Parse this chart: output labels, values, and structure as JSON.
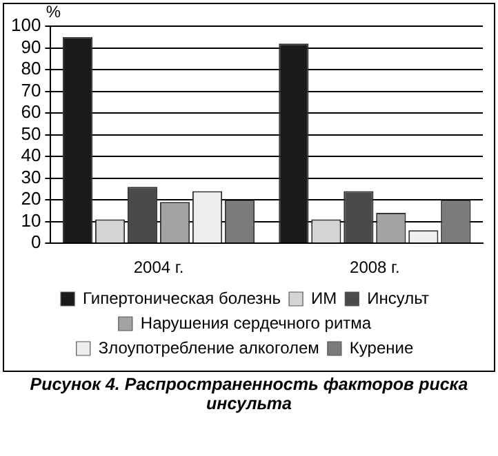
{
  "chart_data": {
    "type": "bar",
    "ylabel": "%",
    "categories": [
      "2004 г.",
      "2008 г."
    ],
    "series": [
      {
        "name": "Гипертоническая болезнь",
        "color": "#1a1a1a",
        "values": [
          95,
          92
        ]
      },
      {
        "name": "ИМ",
        "color": "#d4d4d4",
        "values": [
          11,
          11
        ]
      },
      {
        "name": "Инсульт",
        "color": "#4a4a4a",
        "values": [
          26,
          24
        ]
      },
      {
        "name": "Нарушения сердечного ритма",
        "color": "#a3a3a3",
        "values": [
          19,
          14
        ]
      },
      {
        "name": "Злоупотребление алкоголем",
        "color": "#eeeeee",
        "values": [
          24,
          6
        ]
      },
      {
        "name": "Курение",
        "color": "#7b7b7b",
        "values": [
          20,
          20
        ]
      }
    ],
    "ylim": [
      0,
      100
    ],
    "yticks": [
      0,
      10,
      20,
      30,
      40,
      50,
      60,
      70,
      80,
      90,
      100
    ],
    "grid": "y",
    "legend": "bottom",
    "annotations": [
      "Рисунок 4. Распространенность факторов риска инсульта"
    ]
  }
}
